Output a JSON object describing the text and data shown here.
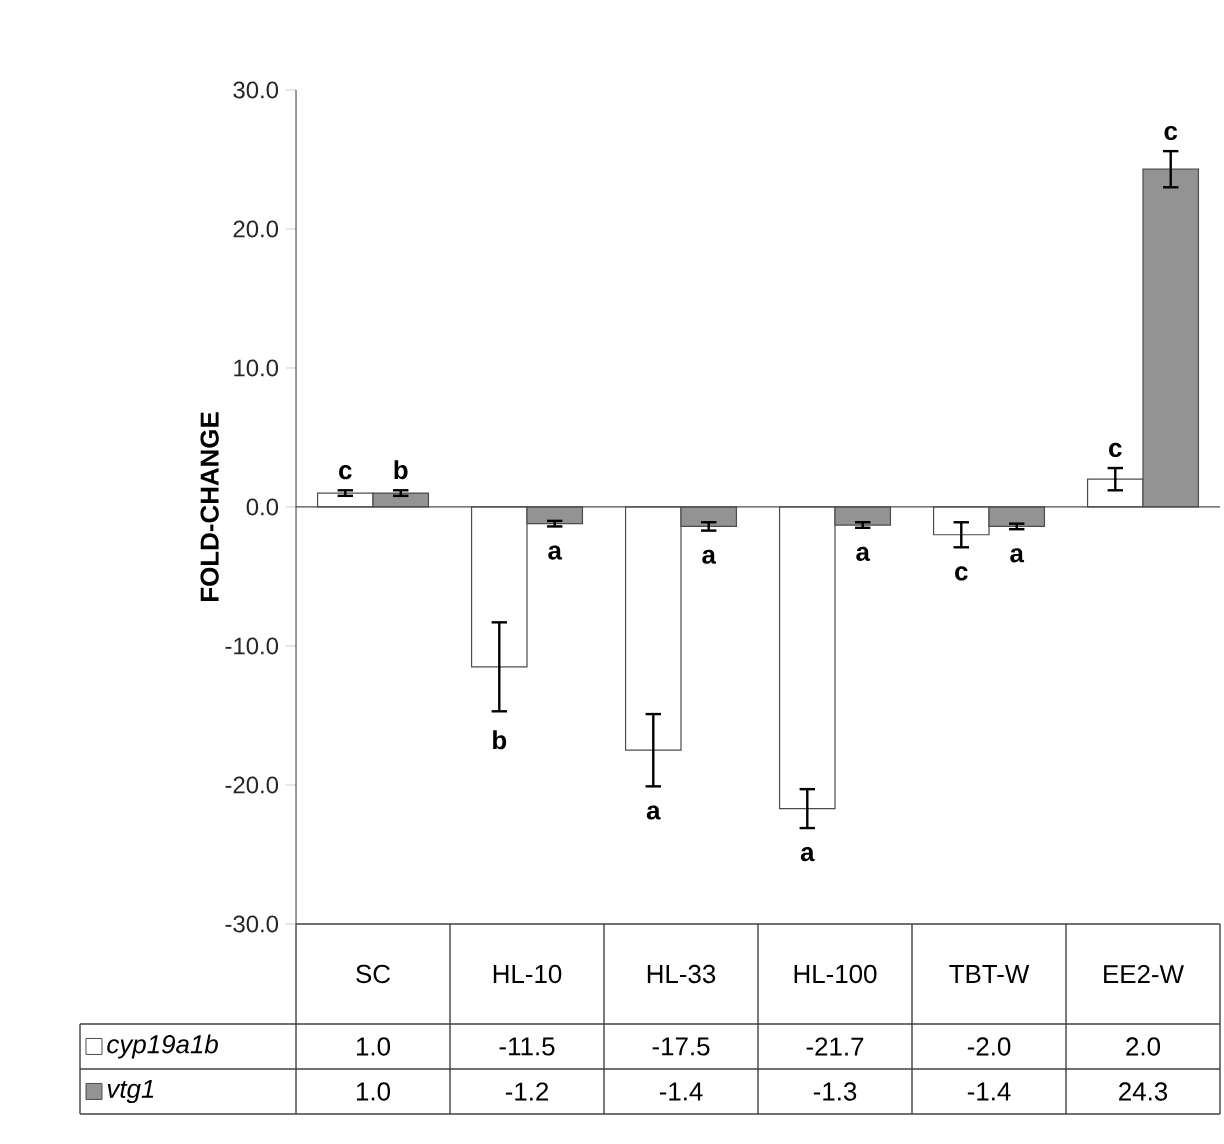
{
  "chart_data": {
    "type": "bar",
    "ylabel": "FOLD-CHANGE",
    "categories": [
      "SC",
      "HL-10",
      "HL-33",
      "HL-100",
      "TBT-W",
      "EE2-W"
    ],
    "series": [
      {
        "name": "cyp19a1b",
        "color": "#ffffff",
        "values": [
          1.0,
          -11.5,
          -17.5,
          -21.7,
          -2.0,
          2.0
        ],
        "errors": [
          0.2,
          3.2,
          2.6,
          1.4,
          0.9,
          0.8
        ],
        "value_labels": [
          "1.0",
          "-11.5",
          "-17.5",
          "-21.7",
          "-2.0",
          "2.0"
        ]
      },
      {
        "name": "vtg1",
        "color": "#939393",
        "values": [
          1.0,
          -1.2,
          -1.4,
          -1.3,
          -1.4,
          24.3
        ],
        "errors": [
          0.2,
          0.2,
          0.3,
          0.2,
          0.2,
          1.3
        ],
        "value_labels": [
          "1.0",
          "-1.2",
          "-1.4",
          "-1.3",
          "-1.4",
          "24.3"
        ]
      }
    ],
    "ylim": [
      -30,
      30
    ],
    "yticks": [
      {
        "value": -30,
        "label": "-30.0"
      },
      {
        "value": -20,
        "label": "-20.0"
      },
      {
        "value": -10,
        "label": "-10.0"
      },
      {
        "value": 0,
        "label": "0.0"
      },
      {
        "value": 10,
        "label": "10.0"
      },
      {
        "value": 20,
        "label": "20.0"
      },
      {
        "value": 30,
        "label": "30.0"
      }
    ],
    "legend": "bottom",
    "annotations": [
      "c",
      "b",
      "b",
      "a",
      "a",
      "a",
      "a",
      "a",
      "c",
      "a",
      "c",
      "c"
    ]
  }
}
